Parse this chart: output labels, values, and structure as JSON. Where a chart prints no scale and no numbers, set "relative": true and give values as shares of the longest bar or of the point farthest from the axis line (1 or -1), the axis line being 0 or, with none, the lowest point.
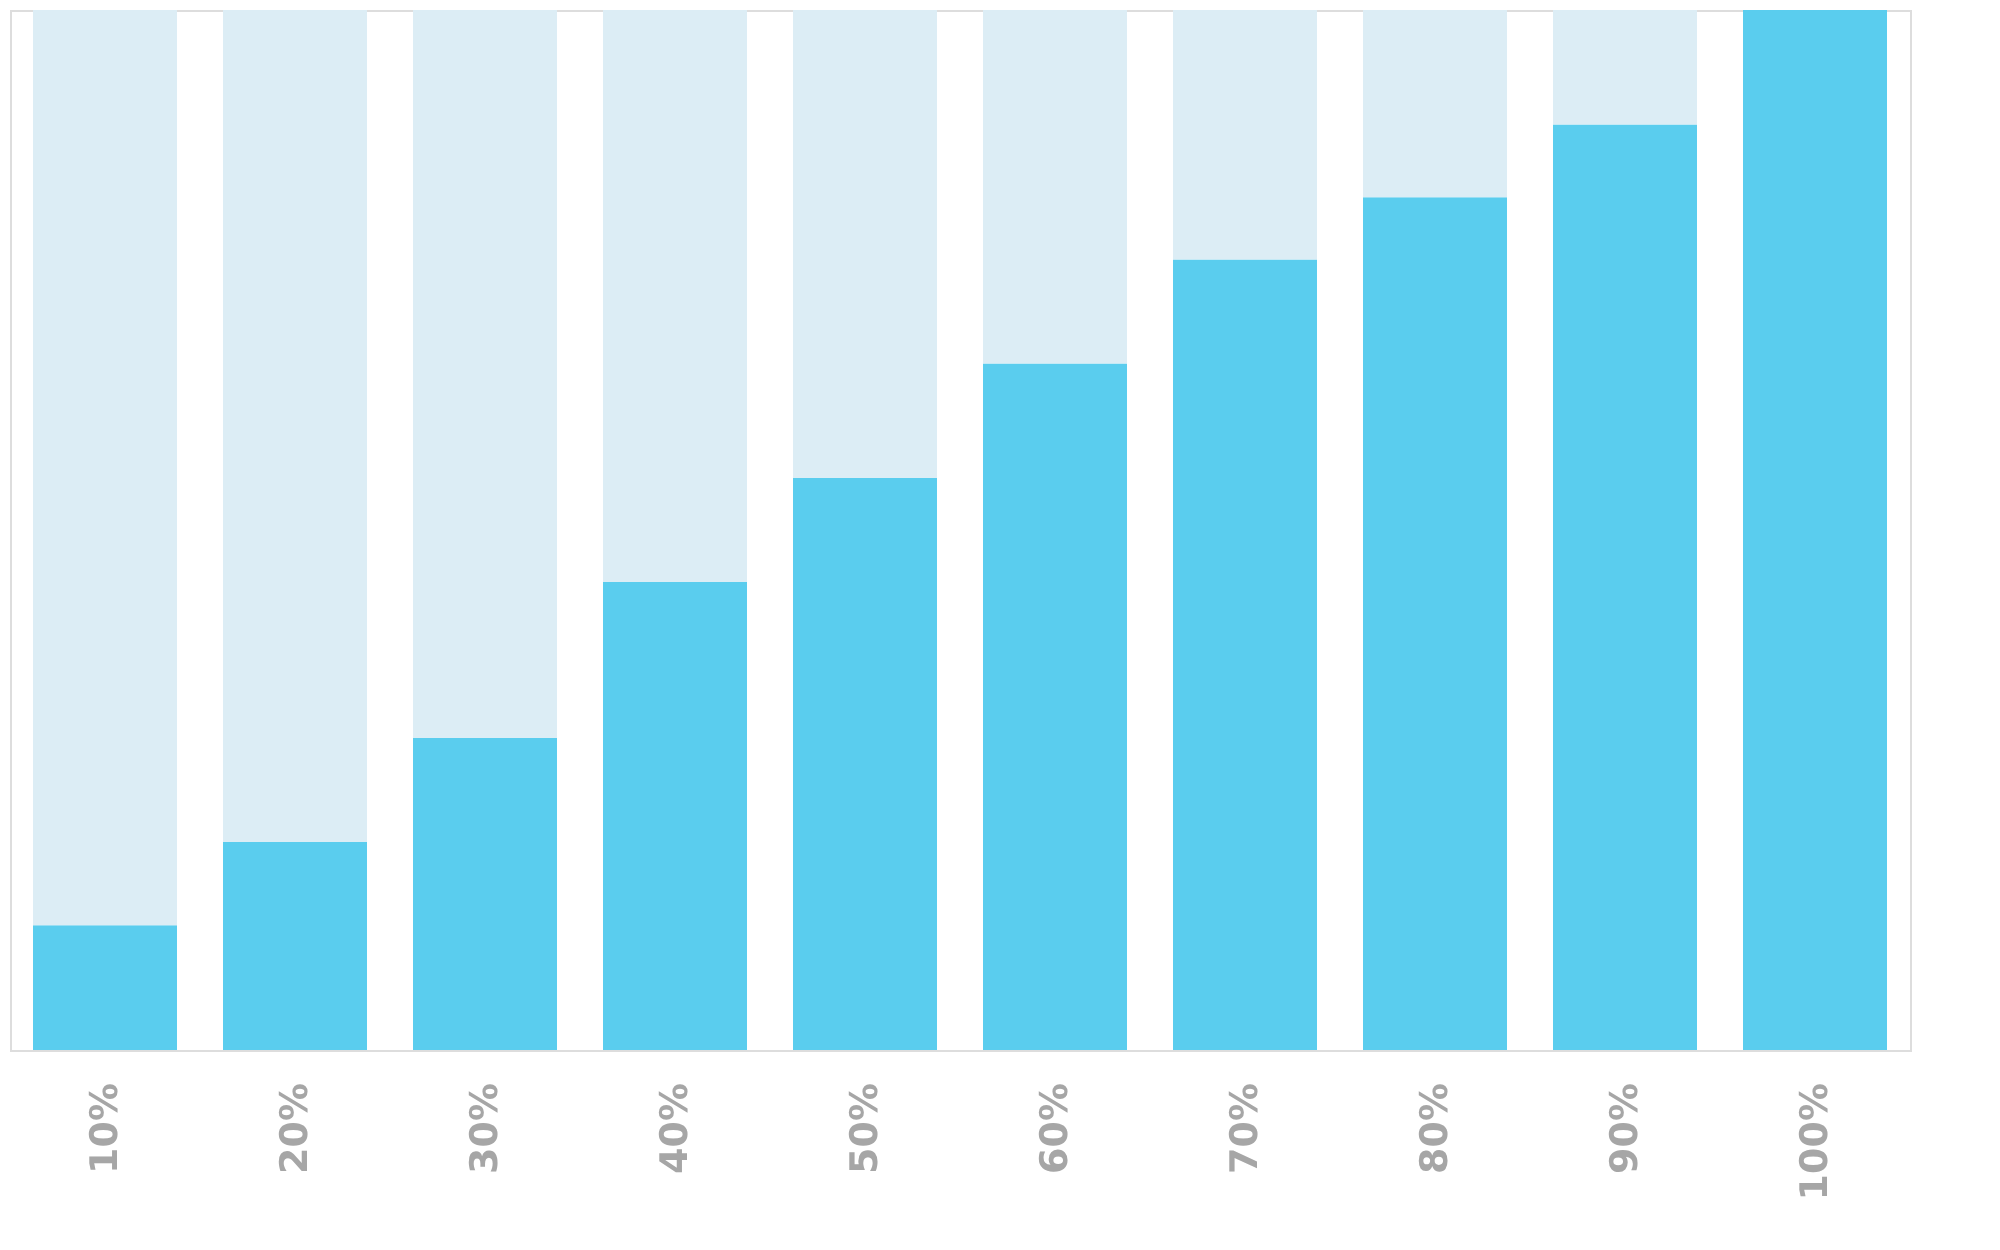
{
  "chart_data": {
    "type": "bar",
    "relative": true,
    "stacked": true,
    "legend": false,
    "grid": false,
    "categories": [
      "10%",
      "20%",
      "30%",
      "40%",
      "50%",
      "60%",
      "70%",
      "80%",
      "90%",
      "100%"
    ],
    "series": [
      {
        "color": "#5acdee",
        "values": [
          0.12,
          0.2,
          0.3,
          0.45,
          0.55,
          0.66,
          0.76,
          0.82,
          0.89,
          1.0
        ]
      },
      {
        "color": "#dcedf5",
        "values": [
          0.88,
          0.8,
          0.7,
          0.55,
          0.45,
          0.34,
          0.24,
          0.18,
          0.11,
          0.0
        ]
      }
    ]
  }
}
